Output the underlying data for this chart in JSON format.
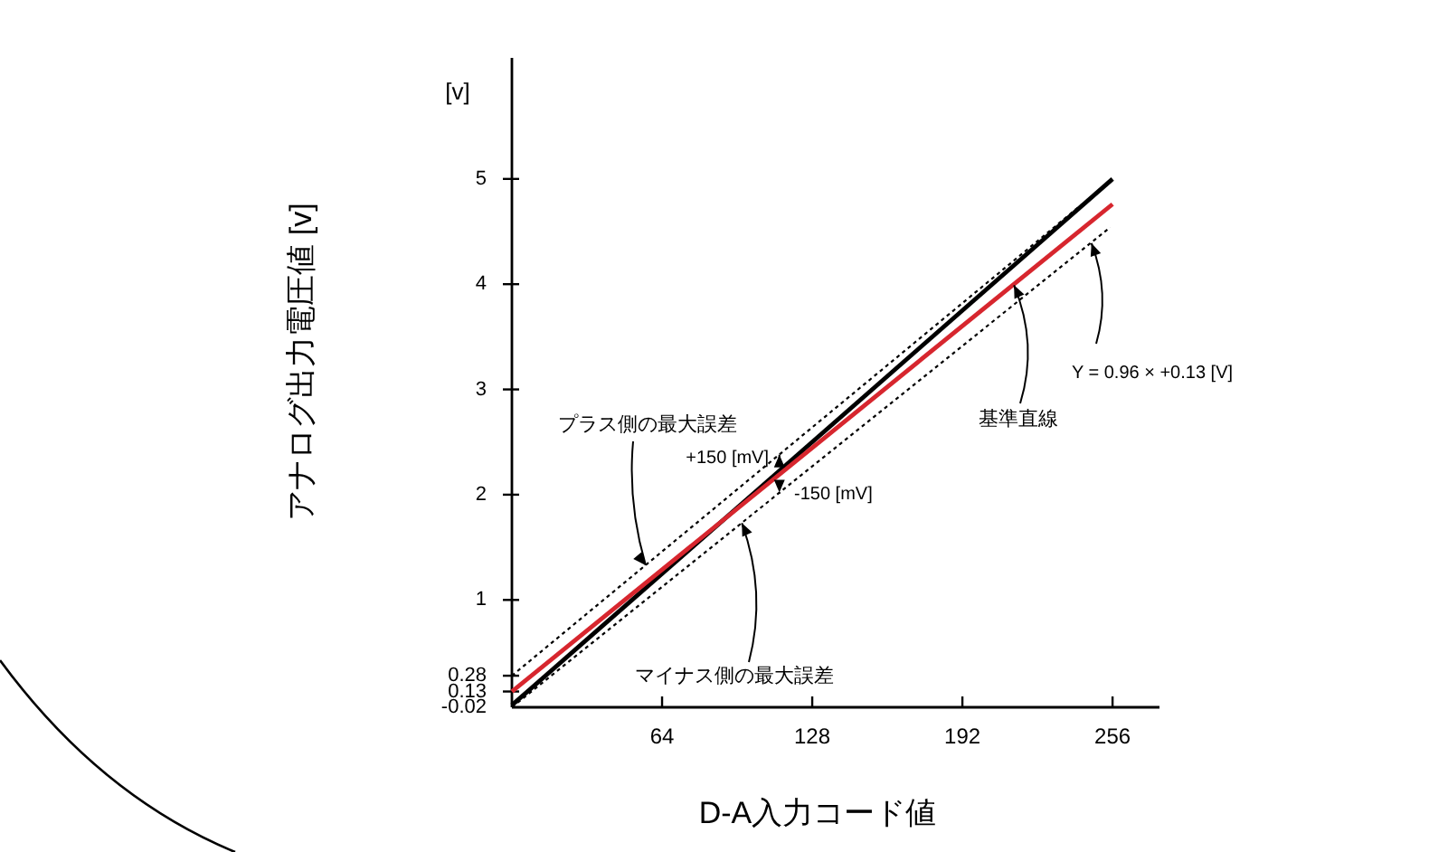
{
  "chart_data": {
    "type": "line",
    "xlabel": "D-A入力コード値",
    "ylabel": "アナログ出力電圧値 [v]",
    "annotations": [
      "[v]",
      {
        "text": "プラス側の最大誤差",
        "x": 57,
        "y": 1.33
      },
      {
        "text": "+150 [mV]",
        "x": 114,
        "y": 2.38
      },
      {
        "text": "-150 [mV]",
        "x": 114,
        "y": 2.02
      },
      {
        "text": "マイナス側の最大誤差",
        "x": 98,
        "y": 1.73
      },
      {
        "text": "基準直線",
        "x": 214,
        "y": 3.99
      },
      {
        "text": "Y = 0.96 × +0.13 [V]",
        "x": 247,
        "y": 4.39
      }
    ],
    "xlim": [
      0,
      276
    ],
    "xticks": [
      64,
      128,
      192,
      256
    ],
    "ylim": [
      -0.02,
      6.15
    ],
    "yticks": [
      -0.02,
      0.13,
      0.28,
      1,
      2,
      3,
      4,
      5
    ],
    "grid": false,
    "marker": "none",
    "series": [
      {
        "color": "#000000",
        "x": [
          0,
          256
        ],
        "values": [
          0,
          5
        ]
      },
      {
        "color": "#d7262e",
        "x": [
          0,
          256
        ],
        "values": [
          0.13,
          4.76
        ]
      },
      {
        "color": "#000000",
        "line_style": "dotted",
        "x": [
          0,
          243
        ],
        "values": [
          0.28,
          4.76
        ]
      },
      {
        "color": "#000000",
        "line_style": "dotted",
        "x": [
          0,
          255
        ],
        "values": [
          -0.02,
          4.54
        ]
      }
    ]
  }
}
